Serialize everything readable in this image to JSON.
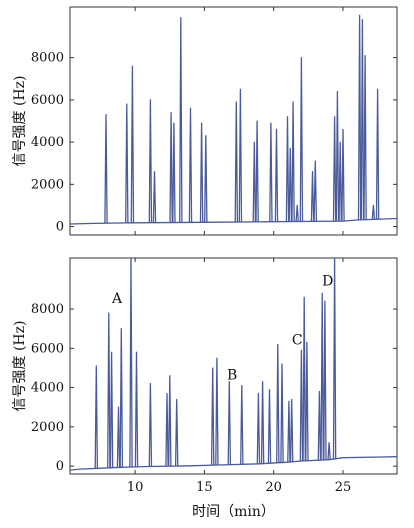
{
  "chart_data": [
    {
      "type": "line",
      "panel": "top",
      "ylabel": "信号强度 (Hz)",
      "xlabel": "",
      "ylim": [
        -400,
        10400
      ],
      "xlim": [
        5.3,
        28.9
      ],
      "yticks": [
        0,
        2000,
        4000,
        6000,
        8000
      ],
      "ytick_labels": [
        "0",
        "2000",
        "4000",
        "6000",
        "8000"
      ],
      "baseline": [
        [
          5.3,
          120
        ],
        [
          7.0,
          150
        ],
        [
          10.0,
          180
        ],
        [
          15.0,
          200
        ],
        [
          20.0,
          230
        ],
        [
          25.0,
          260
        ],
        [
          26.0,
          310
        ],
        [
          28.9,
          380
        ]
      ],
      "peaks": [
        [
          7.9,
          5300
        ],
        [
          9.4,
          5800
        ],
        [
          9.8,
          7600
        ],
        [
          11.1,
          6000
        ],
        [
          11.4,
          2600
        ],
        [
          12.6,
          5400
        ],
        [
          12.8,
          4900
        ],
        [
          13.3,
          9900
        ],
        [
          14.0,
          5600
        ],
        [
          14.8,
          4900
        ],
        [
          15.1,
          4300
        ],
        [
          17.3,
          5900
        ],
        [
          17.6,
          6500
        ],
        [
          18.6,
          4000
        ],
        [
          18.8,
          5000
        ],
        [
          19.8,
          4900
        ],
        [
          20.2,
          4600
        ],
        [
          21.0,
          5200
        ],
        [
          21.2,
          3700
        ],
        [
          21.4,
          5900
        ],
        [
          21.7,
          1000
        ],
        [
          22.0,
          8000
        ],
        [
          22.8,
          2600
        ],
        [
          23.0,
          3100
        ],
        [
          24.4,
          5200
        ],
        [
          24.6,
          6400
        ],
        [
          24.8,
          4000
        ],
        [
          25.0,
          4600
        ],
        [
          26.2,
          10000
        ],
        [
          26.4,
          9800
        ],
        [
          26.6,
          8100
        ],
        [
          27.2,
          1000
        ],
        [
          27.5,
          6500
        ]
      ]
    },
    {
      "type": "line",
      "panel": "bottom",
      "ylabel": "信号强度 (Hz)",
      "xlabel": "时间（min）",
      "ylim": [
        -400,
        10600
      ],
      "xlim": [
        5.3,
        28.9
      ],
      "yticks": [
        0,
        2000,
        4000,
        6000,
        8000
      ],
      "ytick_labels": [
        "0",
        "2000",
        "4000",
        "6000",
        "8000"
      ],
      "xticks": [
        10,
        15,
        20,
        25
      ],
      "xtick_labels": [
        "10",
        "15",
        "20",
        "25"
      ],
      "baseline": [
        [
          5.3,
          -200
        ],
        [
          6.0,
          -150
        ],
        [
          9.0,
          -60
        ],
        [
          11.0,
          -20
        ],
        [
          14.0,
          20
        ],
        [
          16.0,
          60
        ],
        [
          19.0,
          120
        ],
        [
          21.0,
          200
        ],
        [
          22.0,
          260
        ],
        [
          24.0,
          330
        ],
        [
          25.0,
          430
        ],
        [
          28.9,
          480
        ]
      ],
      "peaks": [
        [
          7.2,
          5100
        ],
        [
          8.1,
          7800
        ],
        [
          8.3,
          5800
        ],
        [
          8.8,
          3000
        ],
        [
          9.0,
          7000
        ],
        [
          9.7,
          10600
        ],
        [
          10.1,
          5800
        ],
        [
          11.1,
          4200
        ],
        [
          12.3,
          3700
        ],
        [
          12.5,
          4600
        ],
        [
          13.0,
          3400
        ],
        [
          15.6,
          5000
        ],
        [
          15.9,
          5500
        ],
        [
          16.8,
          4300
        ],
        [
          17.7,
          4100
        ],
        [
          18.9,
          3700
        ],
        [
          19.2,
          4300
        ],
        [
          19.7,
          3900
        ],
        [
          20.3,
          6200
        ],
        [
          20.6,
          5200
        ],
        [
          21.1,
          3300
        ],
        [
          21.3,
          3400
        ],
        [
          22.0,
          5900
        ],
        [
          22.2,
          8600
        ],
        [
          22.4,
          6300
        ],
        [
          23.3,
          3800
        ],
        [
          23.5,
          8800
        ],
        [
          23.7,
          8400
        ],
        [
          24.0,
          1200
        ],
        [
          24.4,
          10600
        ]
      ],
      "annotations": [
        {
          "text": "A",
          "x": 8.7,
          "y": 8300
        },
        {
          "text": "B",
          "x": 17.0,
          "y": 4400
        },
        {
          "text": "C",
          "x": 21.7,
          "y": 6200
        },
        {
          "text": "D",
          "x": 23.9,
          "y": 9200
        }
      ]
    }
  ]
}
